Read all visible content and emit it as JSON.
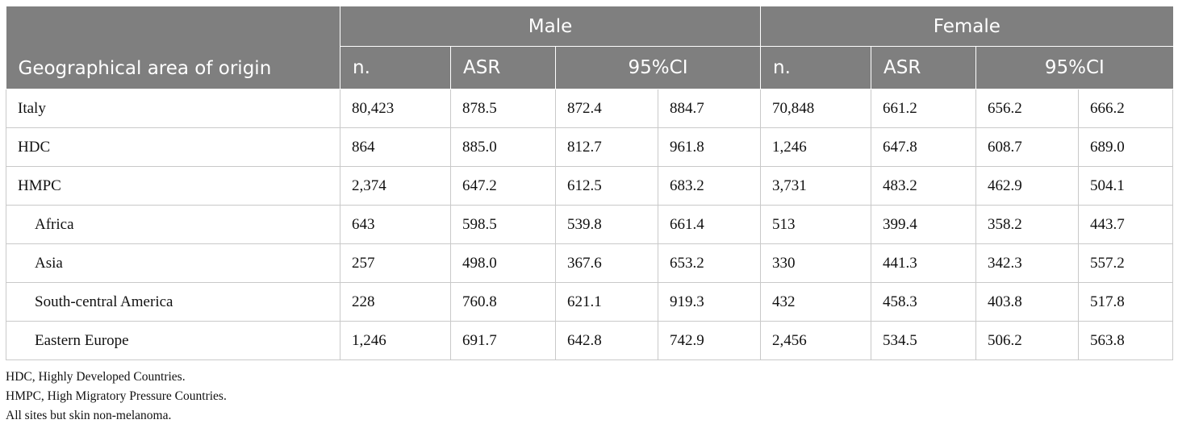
{
  "header": {
    "area_label": "Geographical area of origin",
    "male_label": "Male",
    "female_label": "Female",
    "sub": {
      "n": "n.",
      "asr": "ASR",
      "ci": "95%CI"
    }
  },
  "rows": [
    {
      "area": "Italy",
      "indent": false,
      "m_n": "80,423",
      "m_asr": "878.5",
      "m_lo": "872.4",
      "m_hi": "884.7",
      "f_n": "70,848",
      "f_asr": "661.2",
      "f_lo": "656.2",
      "f_hi": "666.2"
    },
    {
      "area": "HDC",
      "indent": false,
      "m_n": "864",
      "m_asr": "885.0",
      "m_lo": "812.7",
      "m_hi": "961.8",
      "f_n": "1,246",
      "f_asr": "647.8",
      "f_lo": "608.7",
      "f_hi": "689.0"
    },
    {
      "area": "HMPC",
      "indent": false,
      "m_n": "2,374",
      "m_asr": "647.2",
      "m_lo": "612.5",
      "m_hi": "683.2",
      "f_n": "3,731",
      "f_asr": "483.2",
      "f_lo": "462.9",
      "f_hi": "504.1"
    },
    {
      "area": "Africa",
      "indent": true,
      "m_n": "643",
      "m_asr": "598.5",
      "m_lo": "539.8",
      "m_hi": "661.4",
      "f_n": "513",
      "f_asr": "399.4",
      "f_lo": "358.2",
      "f_hi": "443.7"
    },
    {
      "area": "Asia",
      "indent": true,
      "m_n": "257",
      "m_asr": "498.0",
      "m_lo": "367.6",
      "m_hi": "653.2",
      "f_n": "330",
      "f_asr": "441.3",
      "f_lo": "342.3",
      "f_hi": "557.2"
    },
    {
      "area": "South-central America",
      "indent": true,
      "m_n": "228",
      "m_asr": "760.8",
      "m_lo": "621.1",
      "m_hi": "919.3",
      "f_n": "432",
      "f_asr": "458.3",
      "f_lo": "403.8",
      "f_hi": "517.8"
    },
    {
      "area": "Eastern Europe",
      "indent": true,
      "m_n": "1,246",
      "m_asr": "691.7",
      "m_lo": "642.8",
      "m_hi": "742.9",
      "f_n": "2,456",
      "f_asr": "534.5",
      "f_lo": "506.2",
      "f_hi": "563.8"
    }
  ],
  "notes": [
    "HDC, Highly Developed Countries.",
    "HMPC, High Migratory Pressure Countries.",
    "All sites but skin non-melanoma."
  ]
}
